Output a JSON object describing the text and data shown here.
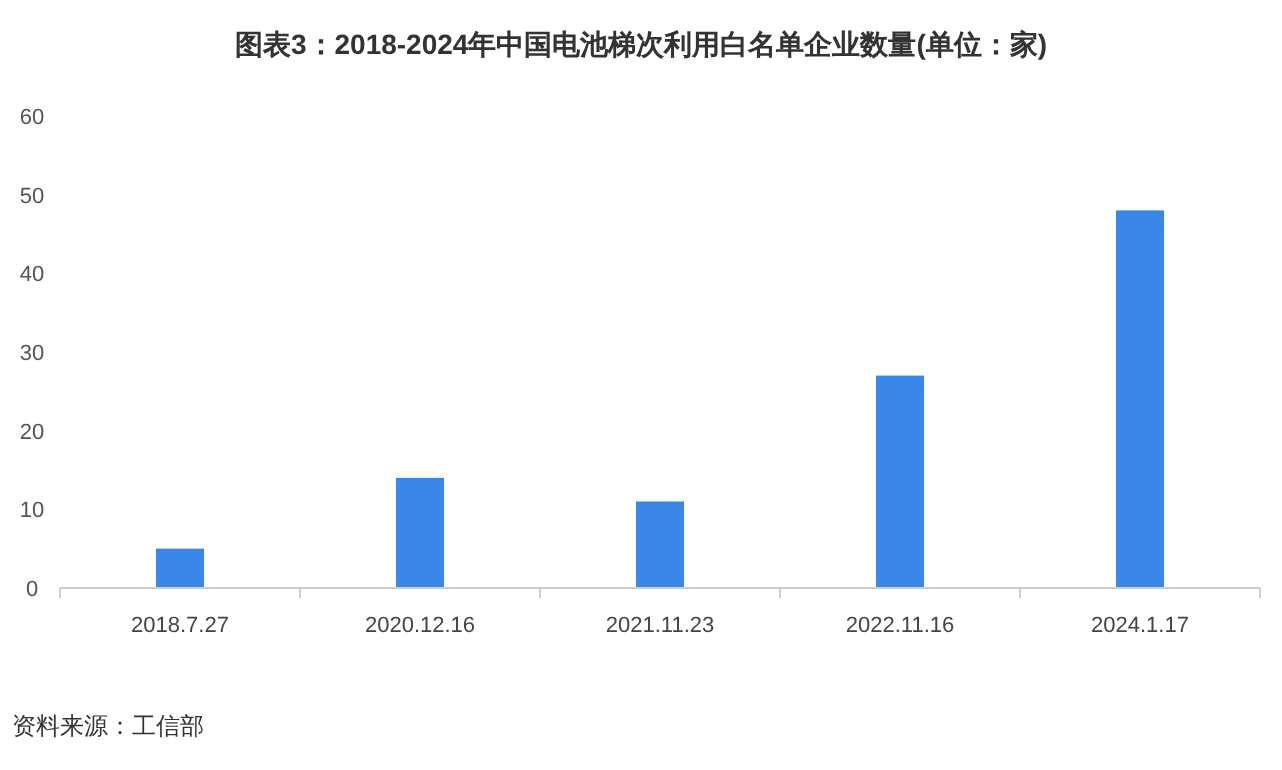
{
  "chart_data": {
    "type": "bar",
    "title": "图表3：2018-2024年中国电池梯次利用白名单企业数量(单位：家)",
    "categories": [
      "2018.7.27",
      "2020.12.16",
      "2021.11.23",
      "2022.11.16",
      "2024.1.17"
    ],
    "values": [
      5,
      14,
      11,
      27,
      48
    ],
    "color": "#3a87e8",
    "ylim": [
      0,
      60
    ],
    "yticks": [
      0,
      10,
      20,
      30,
      40,
      50,
      60
    ],
    "grid": false,
    "annotations": [
      "资料来源：工信部"
    ]
  }
}
